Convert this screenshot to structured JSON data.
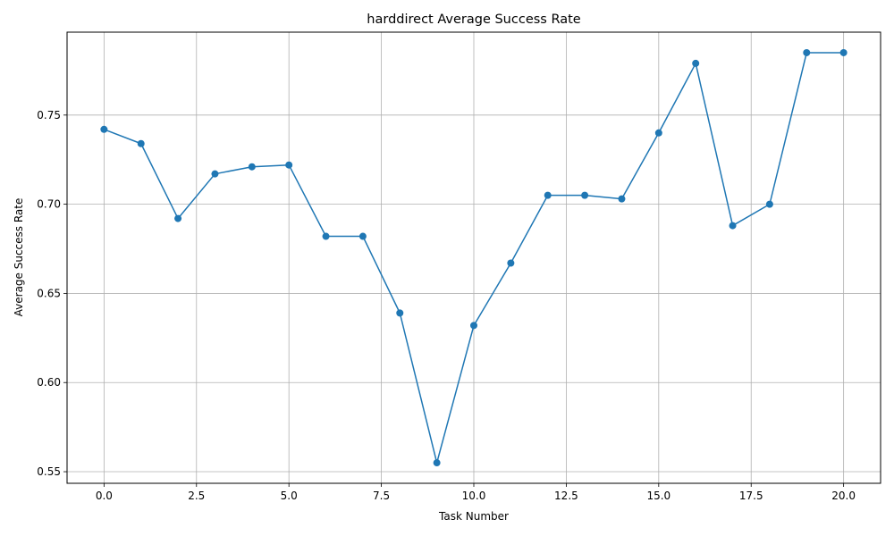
{
  "chart_data": {
    "type": "line",
    "title": "harddirect Average Success Rate",
    "xlabel": "Task Number",
    "ylabel": "Average Success Rate",
    "x": [
      0,
      1,
      2,
      3,
      4,
      5,
      6,
      7,
      8,
      9,
      10,
      11,
      12,
      13,
      14,
      15,
      16,
      17,
      18,
      19,
      20
    ],
    "series": [
      {
        "color": "#1f77b4",
        "marker": "circle",
        "values": [
          0.742,
          0.734,
          0.692,
          0.717,
          0.721,
          0.722,
          0.682,
          0.682,
          0.639,
          0.555,
          0.632,
          0.667,
          0.705,
          0.705,
          0.703,
          0.74,
          0.779,
          0.688,
          0.7,
          0.785,
          0.785
        ]
      }
    ],
    "xlim": [
      -1,
      21
    ],
    "ylim": [
      0.5435,
      0.7965
    ],
    "xticks": [
      0.0,
      2.5,
      5.0,
      7.5,
      10.0,
      12.5,
      15.0,
      17.5,
      20.0
    ],
    "xtick_labels": [
      "0.0",
      "2.5",
      "5.0",
      "7.5",
      "10.0",
      "12.5",
      "15.0",
      "17.5",
      "20.0"
    ],
    "yticks": [
      0.55,
      0.6,
      0.65,
      0.7,
      0.75
    ],
    "ytick_labels": [
      "0.55",
      "0.60",
      "0.65",
      "0.70",
      "0.75"
    ],
    "grid": true,
    "legend": "none"
  }
}
